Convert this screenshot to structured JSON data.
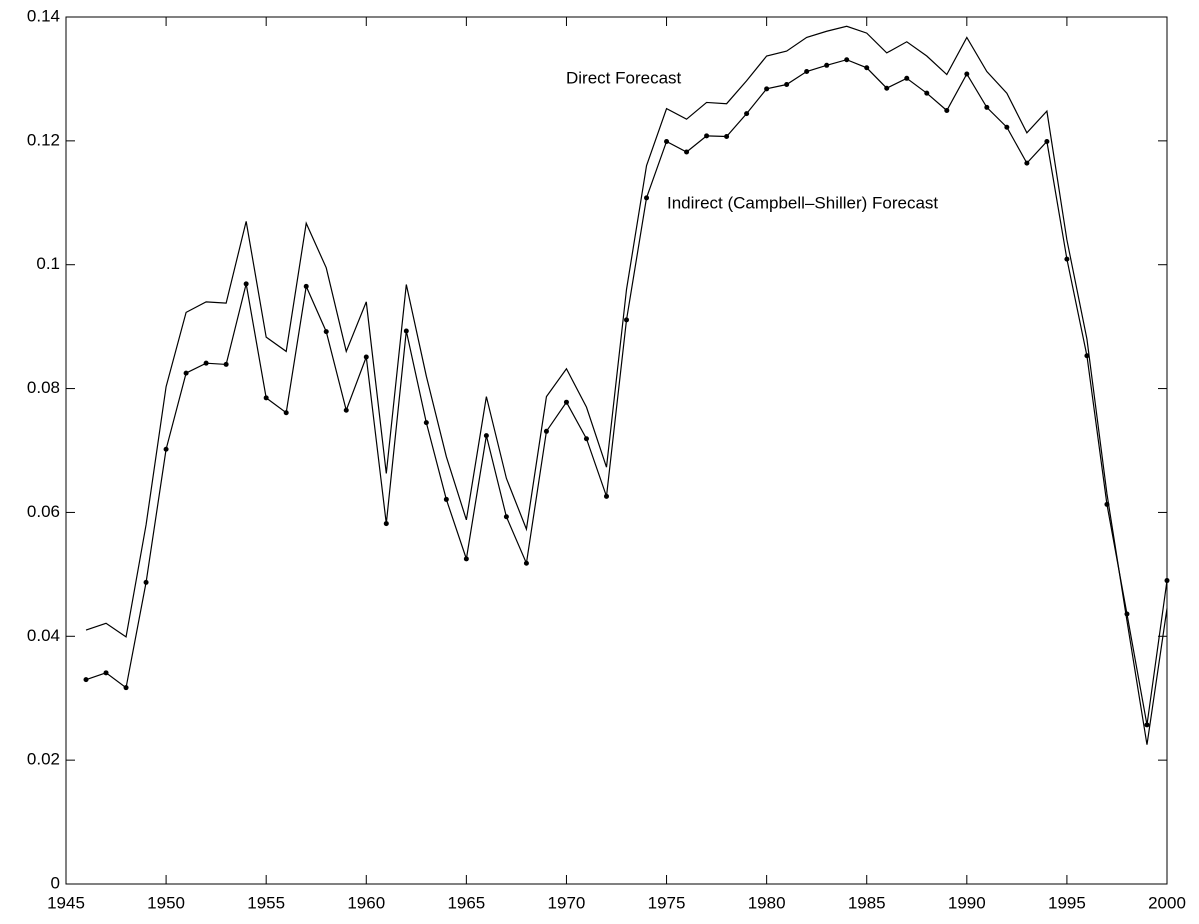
{
  "chart_data": {
    "type": "line",
    "x": [
      1946,
      1947,
      1948,
      1949,
      1950,
      1951,
      1952,
      1953,
      1954,
      1955,
      1956,
      1957,
      1958,
      1959,
      1960,
      1961,
      1962,
      1963,
      1964,
      1965,
      1966,
      1967,
      1968,
      1969,
      1970,
      1971,
      1972,
      1973,
      1974,
      1975,
      1976,
      1977,
      1978,
      1979,
      1980,
      1981,
      1982,
      1983,
      1984,
      1985,
      1986,
      1987,
      1988,
      1989,
      1990,
      1991,
      1992,
      1993,
      1994,
      1995,
      1996,
      1997,
      1998,
      1999,
      2000
    ],
    "series": [
      {
        "name": "Direct Forecast",
        "color": "#000000",
        "marker": false,
        "values": [
          0.041,
          0.0421,
          0.0399,
          0.058,
          0.0803,
          0.0923,
          0.094,
          0.0938,
          0.107,
          0.0883,
          0.086,
          0.1067,
          0.0995,
          0.086,
          0.094,
          0.0663,
          0.0968,
          0.082,
          0.069,
          0.0588,
          0.0787,
          0.0655,
          0.0573,
          0.0787,
          0.0832,
          0.077,
          0.0673,
          0.096,
          0.116,
          0.1252,
          0.1235,
          0.1262,
          0.126,
          0.1297,
          0.1337,
          0.1345,
          0.1367,
          0.1377,
          0.1385,
          0.1374,
          0.1342,
          0.136,
          0.1337,
          0.1307,
          0.1367,
          0.1312,
          0.1277,
          0.1213,
          0.1248,
          0.104,
          0.088,
          0.063,
          0.0425,
          0.0225,
          0.0445
        ]
      },
      {
        "name": "Indirect (Campbell–Shiller) Forecast",
        "color": "#000000",
        "marker": true,
        "values": [
          0.033,
          0.0341,
          0.0317,
          0.0487,
          0.0702,
          0.0825,
          0.0841,
          0.0839,
          0.0969,
          0.0785,
          0.0761,
          0.0965,
          0.0892,
          0.0765,
          0.0851,
          0.0582,
          0.0893,
          0.0745,
          0.0621,
          0.0525,
          0.0724,
          0.0593,
          0.0518,
          0.0731,
          0.0778,
          0.0719,
          0.0626,
          0.0911,
          0.1108,
          0.1199,
          0.1182,
          0.1208,
          0.1207,
          0.1244,
          0.1284,
          0.1291,
          0.1312,
          0.1322,
          0.1331,
          0.1318,
          0.1285,
          0.1301,
          0.1277,
          0.1249,
          0.1308,
          0.1254,
          0.1222,
          0.1164,
          0.1199,
          0.1009,
          0.0853,
          0.0613,
          0.0436,
          0.0257,
          0.049
        ]
      }
    ],
    "xlim": [
      1945,
      2000
    ],
    "xticks": [
      1945,
      1950,
      1955,
      1960,
      1965,
      1970,
      1975,
      1980,
      1985,
      1990,
      1995,
      2000
    ],
    "ylim": [
      0,
      0.14
    ],
    "yticks": [
      0,
      0.02,
      0.04,
      0.06,
      0.08,
      0.1,
      0.12,
      0.14
    ],
    "grid": false
  }
}
